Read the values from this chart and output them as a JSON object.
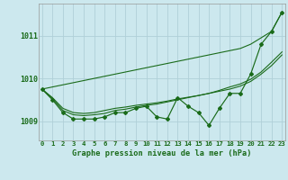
{
  "xlabel": "Graphe pression niveau de la mer (hPa)",
  "bg_color": "#cce8ee",
  "grid_color": "#b0d0d8",
  "line_color": "#1a6b1a",
  "x_ticks": [
    0,
    1,
    2,
    3,
    4,
    5,
    6,
    7,
    8,
    9,
    10,
    11,
    12,
    13,
    14,
    15,
    16,
    17,
    18,
    19,
    20,
    21,
    22,
    23
  ],
  "y_ticks": [
    1009,
    1010,
    1011
  ],
  "ylim": [
    1008.55,
    1011.75
  ],
  "xlim": [
    -0.3,
    23.3
  ],
  "y_main": [
    1009.75,
    1009.5,
    1009.2,
    1009.05,
    1009.05,
    1009.05,
    1009.1,
    1009.2,
    1009.2,
    1009.3,
    1009.35,
    1009.1,
    1009.05,
    1009.55,
    1009.35,
    1009.2,
    1008.9,
    1009.3,
    1009.65,
    1009.65,
    1010.1,
    1010.8,
    1011.1,
    1011.55
  ],
  "y_linear": [
    1009.75,
    1009.8,
    1009.85,
    1009.9,
    1009.95,
    1010.0,
    1010.05,
    1010.1,
    1010.15,
    1010.2,
    1010.25,
    1010.3,
    1010.35,
    1010.4,
    1010.45,
    1010.5,
    1010.55,
    1010.6,
    1010.65,
    1010.7,
    1010.8,
    1010.95,
    1011.1,
    1011.55
  ],
  "y_smooth1": [
    1009.75,
    1009.55,
    1009.3,
    1009.2,
    1009.18,
    1009.2,
    1009.25,
    1009.3,
    1009.33,
    1009.37,
    1009.4,
    1009.43,
    1009.47,
    1009.52,
    1009.56,
    1009.6,
    1009.65,
    1009.7,
    1009.75,
    1009.82,
    1009.93,
    1010.1,
    1010.3,
    1010.55
  ],
  "y_smooth2": [
    1009.75,
    1009.53,
    1009.25,
    1009.15,
    1009.13,
    1009.15,
    1009.18,
    1009.25,
    1009.28,
    1009.33,
    1009.37,
    1009.4,
    1009.45,
    1009.5,
    1009.55,
    1009.6,
    1009.65,
    1009.72,
    1009.8,
    1009.87,
    1009.98,
    1010.15,
    1010.38,
    1010.62
  ]
}
